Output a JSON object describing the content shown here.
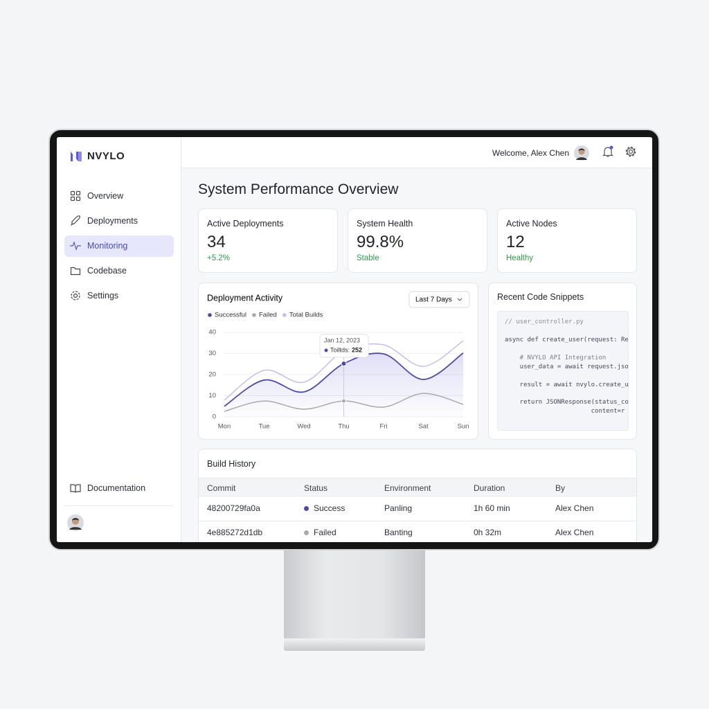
{
  "sidebar": {
    "brand": "NVYLO",
    "nav": [
      "Overview",
      "Deployments",
      "Monitoring",
      "Codebase",
      "Settings"
    ],
    "footer_link": "Documentation"
  },
  "header": {
    "welcome": "Welcome, Alex Chen"
  },
  "page_title": "System Performance Overview",
  "stats": [
    {
      "label": "Active Deployments",
      "value": "34",
      "change": "+5.2%"
    },
    {
      "label": "System Health",
      "value": "99.8%",
      "change": "Stable"
    },
    {
      "label": "Active Nodes",
      "value": "12",
      "change": "Healthy"
    }
  ],
  "chart_data": {
    "type": "line",
    "title": "Deployment Activity",
    "period": "Last 7 Days",
    "categories": [
      "Mon",
      "Tue",
      "Wed",
      "Thu",
      "Fri",
      "Sat",
      "Sun"
    ],
    "series": [
      {
        "name": "Successful",
        "color": "#4d4aa6",
        "values": [
          5,
          17.4,
          11.8,
          25.2,
          29.8,
          17.7,
          30.2
        ]
      },
      {
        "name": "Failed",
        "color": "#a8a8ad",
        "values": [
          2.6,
          7.5,
          3.6,
          7.5,
          4.6,
          11.1,
          5.9
        ]
      },
      {
        "name": "Total Builds",
        "color": "#c3c0e6",
        "values": [
          7.9,
          22,
          16.4,
          31.1,
          34.1,
          23.9,
          36
        ]
      }
    ],
    "ylim": [
      0,
      40
    ],
    "yticks": [
      0,
      10,
      20,
      30,
      40
    ],
    "grid": true,
    "tooltip": {
      "date": "Jan 12, 2023",
      "label": "Toiltds:",
      "value": "252"
    }
  },
  "code_card": {
    "title": "Recent Code Snippets",
    "lines": [
      "// user_controller.py",
      "async def create_user(request: Re",
      "    # NVYLO API Integration",
      "    user_data = await request.jso",
      "    result = await nvylo.create_u",
      "    return JSONResponse(status_co",
      "                       content=r"
    ]
  },
  "build_history": {
    "title": "Build History",
    "columns": [
      "Commit",
      "Status",
      "Environment",
      "Duration",
      "By"
    ],
    "rows": [
      [
        "48200729fa0a",
        "Success",
        "Panling",
        "1h 60 min",
        "Alex Chen"
      ],
      [
        "4e885272d1db",
        "Failed",
        "Banting",
        "0h 32m",
        "Alex Chen"
      ]
    ]
  }
}
